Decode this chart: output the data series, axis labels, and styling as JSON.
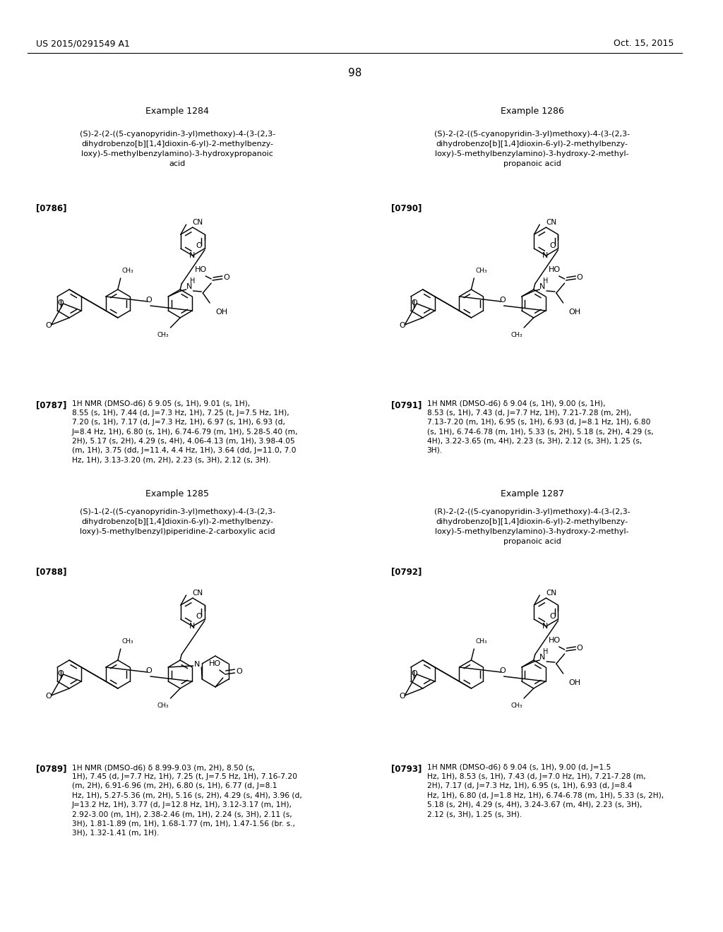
{
  "bg": "#ffffff",
  "header_left": "US 2015/0291549 A1",
  "header_right": "Oct. 15, 2015",
  "page_num": "98",
  "ex1284_label": "Example 1284",
  "ex1284_name": "(S)-2-(2-((5-cyanopyridin-3-yl)methoxy)-4-(3-(2,3-\ndihydrobenzo[b][1,4]dioxin-6-yl)-2-methylbenzy-\nloxy)-5-methylbenzylamino)-3-hydroxypropanoic\nacid",
  "ex1284_ref": "[0786]",
  "ex1284_nmr_ref": "[0787]",
  "ex1284_nmr": "1H NMR (DMSO-d6) δ 9.05 (s, 1H), 9.01 (s, 1H),\n8.55 (s, 1H), 7.44 (d, J=7.3 Hz, 1H), 7.25 (t, J=7.5 Hz, 1H),\n7.20 (s, 1H), 7.17 (d, J=7.3 Hz, 1H), 6.97 (s, 1H), 6.93 (d,\nJ=8.4 Hz, 1H), 6.80 (s, 1H), 6.74-6.79 (m, 1H), 5.28-5.40 (m,\n2H), 5.17 (s, 2H), 4.29 (s, 4H), 4.06-4.13 (m, 1H), 3.98-4.05\n(m, 1H), 3.75 (dd, J=11.4, 4.4 Hz, 1H), 3.64 (dd, J=11.0, 7.0\nHz, 1H), 3.13-3.20 (m, 2H), 2.23 (s, 3H), 2.12 (s, 3H).",
  "ex1286_label": "Example 1286",
  "ex1286_name": "(S)-2-(2-((5-cyanopyridin-3-yl)methoxy)-4-(3-(2,3-\ndihydrobenzo[b][1,4]dioxin-6-yl)-2-methylbenzy-\nloxy)-5-methylbenzylamino)-3-hydroxy-2-methyl-\npropanoic acid",
  "ex1286_ref": "[0790]",
  "ex1286_nmr_ref": "[0791]",
  "ex1286_nmr": "1H NMR (DMSO-d6) δ 9.04 (s, 1H), 9.00 (s, 1H),\n8.53 (s, 1H), 7.43 (d, J=7.7 Hz, 1H), 7.21-7.28 (m, 2H),\n7.13-7.20 (m, 1H), 6.95 (s, 1H), 6.93 (d, J=8.1 Hz, 1H), 6.80\n(s, 1H), 6.74-6.78 (m, 1H), 5.33 (s, 2H), 5.18 (s, 2H), 4.29 (s,\n4H), 3.22-3.65 (m, 4H), 2.23 (s, 3H), 2.12 (s, 3H), 1.25 (s,\n3H).",
  "ex1285_label": "Example 1285",
  "ex1285_name": "(S)-1-(2-((5-cyanopyridin-3-yl)methoxy)-4-(3-(2,3-\ndihydrobenzo[b][1,4]dioxin-6-yl)-2-methylbenzy-\nloxy)-5-methylbenzyl)piperidine-2-carboxylic acid",
  "ex1285_ref": "[0788]",
  "ex1285_nmr_ref": "[0789]",
  "ex1285_nmr": "1H NMR (DMSO-d6) δ 8.99-9.03 (m, 2H), 8.50 (s,\n1H), 7.45 (d, J=7.7 Hz, 1H), 7.25 (t, J=7.5 Hz, 1H), 7.16-7.20\n(m, 2H), 6.91-6.96 (m, 2H), 6.80 (s, 1H), 6.77 (d, J=8.1\nHz, 1H), 5.27-5.36 (m, 2H), 5.16 (s, 2H), 4.29 (s, 4H), 3.96 (d,\nJ=13.2 Hz, 1H), 3.77 (d, J=12.8 Hz, 1H), 3.12-3.17 (m, 1H),\n2.92-3.00 (m, 1H), 2.38-2.46 (m, 1H), 2.24 (s, 3H), 2.11 (s,\n3H), 1.81-1.89 (m, 1H), 1.68-1.77 (m, 1H), 1.47-1.56 (br. s.,\n3H), 1.32-1.41 (m, 1H).",
  "ex1287_label": "Example 1287",
  "ex1287_name": "(R)-2-(2-((5-cyanopyridin-3-yl)methoxy)-4-(3-(2,3-\ndihydrobenzo[b][1,4]dioxin-6-yl)-2-methylbenzy-\nloxy)-5-methylbenzylamino)-3-hydroxy-2-methyl-\npropanoic acid",
  "ex1287_ref": "[0792]",
  "ex1287_nmr_ref": "[0793]",
  "ex1287_nmr": "1H NMR (DMSO-d6) δ 9.04 (s, 1H), 9.00 (d, J=1.5\nHz, 1H), 8.53 (s, 1H), 7.43 (d, J=7.0 Hz, 1H), 7.21-7.28 (m,\n2H), 7.17 (d, J=7.3 Hz, 1H), 6.95 (s, 1H), 6.93 (d, J=8.4\nHz, 1H), 6.80 (d, J=1.8 Hz, 1H), 6.74-6.78 (m, 1H), 5.33 (s, 2H),\n5.18 (s, 2H), 4.29 (s, 4H), 3.24-3.67 (m, 4H), 2.23 (s, 3H),\n2.12 (s, 3H), 1.25 (s, 3H)."
}
